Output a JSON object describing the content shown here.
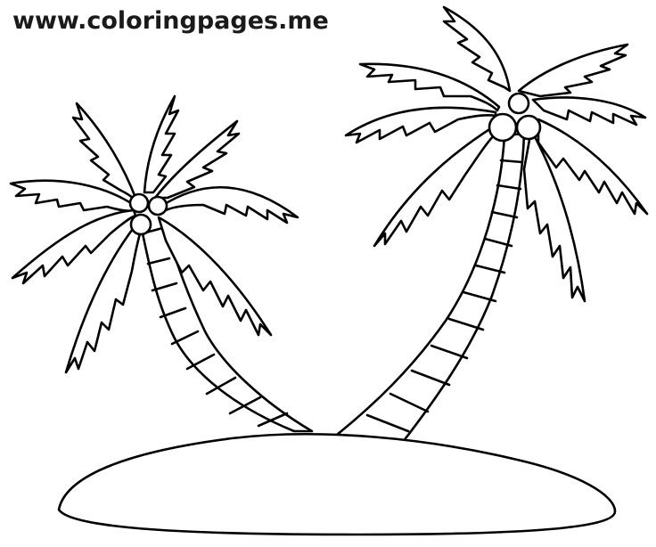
{
  "watermark": {
    "text": "www.coloringpages.me"
  },
  "illustration": {
    "subject_icons": [
      "palm-tree-left-icon",
      "palm-tree-right-icon",
      "island-icon",
      "coconut-icon"
    ],
    "line_color": "#000000",
    "background_color": "#ffffff"
  }
}
